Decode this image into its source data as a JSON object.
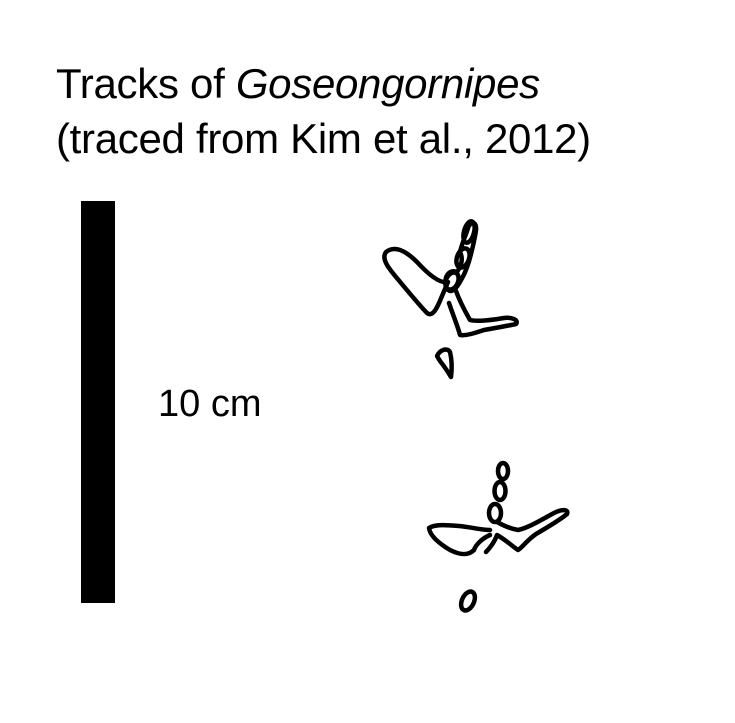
{
  "figure": {
    "title_line1_prefix": "Tracks of ",
    "title_line1_taxon": "Goseongornipes",
    "title_line2": "(traced from Kim et al., 2012)"
  },
  "scale": {
    "label": "10 cm"
  },
  "tracks": [
    {
      "id": "upper"
    },
    {
      "id": "lower"
    }
  ]
}
